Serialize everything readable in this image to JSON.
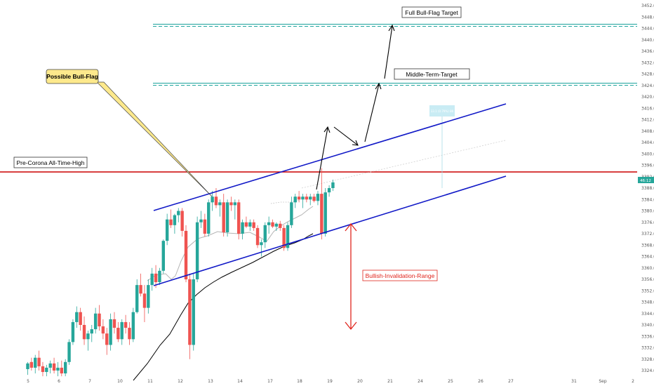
{
  "chart_data": {
    "type": "candlestick",
    "title": "",
    "y_axis": {
      "ticks": [
        "3452.0",
        "3448.0",
        "3444.0",
        "3440.0",
        "3436.0",
        "3432.0",
        "3428.0",
        "3424.0",
        "3420.0",
        "3416.0",
        "3412.0",
        "3408.0",
        "3404.0",
        "3400.0",
        "3396.0",
        "3392.0",
        "3388.0",
        "3384.0",
        "3380.0",
        "3376.0",
        "3372.0",
        "3368.0",
        "3364.0",
        "3360.0",
        "3356.0",
        "3352.0",
        "3348.0",
        "3344.0",
        "3340.0",
        "3336.0",
        "3332.0",
        "3328.0",
        "3324.0"
      ],
      "range": [
        3322,
        3454
      ],
      "position": "right"
    },
    "x_axis": {
      "ticks": [
        "5",
        "6",
        "7",
        "10",
        "11",
        "12",
        "13",
        "14",
        "17",
        "18",
        "19",
        "20",
        "21",
        "24",
        "25",
        "26",
        "27",
        "31",
        "Sep",
        "2"
      ]
    },
    "current_price_tag": "46:12",
    "colors": {
      "up": "#26a69a",
      "down": "#ef5350",
      "channel": "#1119c7",
      "resistance": "#cc0000",
      "target_line": "#1ba39c",
      "ma_slow": "#000000",
      "ma_fast": "#b4b4b4",
      "callout_fill": "#fde98c",
      "invalidation": "#e0251d"
    },
    "horizontal_levels": [
      {
        "label": "Pre-Corona All-Time-High",
        "price": 3393.5
      },
      {
        "label": "Middle-Term-Target",
        "price": 3424.5
      },
      {
        "label": "Full Bull-Flag Target",
        "price": 3445.5
      }
    ],
    "annotations": {
      "bull_flag": "Possible Bull-Flag",
      "invalidation": "Bullish-Invalidation-Range",
      "projection_box": "33.1 (0.79%) 86"
    },
    "candles": [
      {
        "x": 1.2,
        "o": 3324.5,
        "h": 3327.0,
        "l": 3322.5,
        "c": 3326.5
      },
      {
        "x": 1.5,
        "o": 3327.0,
        "h": 3328.5,
        "l": 3324.0,
        "c": 3325.0
      },
      {
        "x": 1.8,
        "o": 3325.0,
        "h": 3329.5,
        "l": 3323.0,
        "c": 3328.5
      },
      {
        "x": 2.1,
        "o": 3328.5,
        "h": 3331.0,
        "l": 3324.0,
        "c": 3325.5
      },
      {
        "x": 2.4,
        "o": 3325.5,
        "h": 3327.0,
        "l": 3322.0,
        "c": 3323.5
      },
      {
        "x": 2.7,
        "o": 3323.5,
        "h": 3326.0,
        "l": 3322.0,
        "c": 3325.0
      },
      {
        "x": 3.0,
        "o": 3325.0,
        "h": 3327.5,
        "l": 3323.0,
        "c": 3326.5
      },
      {
        "x": 3.3,
        "o": 3326.5,
        "h": 3328.5,
        "l": 3323.0,
        "c": 3324.0
      },
      {
        "x": 3.6,
        "o": 3324.0,
        "h": 3327.0,
        "l": 3322.0,
        "c": 3325.0
      },
      {
        "x": 3.9,
        "o": 3325.0,
        "h": 3327.5,
        "l": 3322.0,
        "c": 3323.0
      },
      {
        "x": 4.2,
        "o": 3323.0,
        "h": 3328.0,
        "l": 3322.0,
        "c": 3327.0
      },
      {
        "x": 4.5,
        "o": 3327.0,
        "h": 3335.0,
        "l": 3326.0,
        "c": 3334.0
      },
      {
        "x": 4.8,
        "o": 3334.0,
        "h": 3342.0,
        "l": 3333.0,
        "c": 3341.0
      },
      {
        "x": 5.1,
        "o": 3341.0,
        "h": 3346.5,
        "l": 3339.0,
        "c": 3344.5
      },
      {
        "x": 5.4,
        "o": 3344.5,
        "h": 3346.0,
        "l": 3338.0,
        "c": 3340.0
      },
      {
        "x": 5.7,
        "o": 3340.0,
        "h": 3343.0,
        "l": 3333.0,
        "c": 3335.0
      },
      {
        "x": 6.0,
        "o": 3335.0,
        "h": 3338.0,
        "l": 3331.0,
        "c": 3337.0
      },
      {
        "x": 6.3,
        "o": 3337.0,
        "h": 3340.0,
        "l": 3334.0,
        "c": 3338.5
      },
      {
        "x": 6.6,
        "o": 3338.5,
        "h": 3346.0,
        "l": 3337.0,
        "c": 3344.0
      },
      {
        "x": 6.9,
        "o": 3344.0,
        "h": 3347.0,
        "l": 3338.0,
        "c": 3339.5
      },
      {
        "x": 7.2,
        "o": 3339.5,
        "h": 3342.0,
        "l": 3335.0,
        "c": 3337.0
      },
      {
        "x": 7.5,
        "o": 3337.0,
        "h": 3339.0,
        "l": 3329.5,
        "c": 3333.0
      },
      {
        "x": 7.8,
        "o": 3333.0,
        "h": 3344.0,
        "l": 3331.0,
        "c": 3342.0
      },
      {
        "x": 8.1,
        "o": 3342.0,
        "h": 3344.5,
        "l": 3337.0,
        "c": 3339.0
      },
      {
        "x": 8.4,
        "o": 3339.0,
        "h": 3341.0,
        "l": 3334.0,
        "c": 3335.0
      },
      {
        "x": 8.7,
        "o": 3335.0,
        "h": 3342.0,
        "l": 3333.0,
        "c": 3341.0
      },
      {
        "x": 9.0,
        "o": 3341.0,
        "h": 3343.5,
        "l": 3337.0,
        "c": 3339.0
      },
      {
        "x": 9.3,
        "o": 3339.0,
        "h": 3341.0,
        "l": 3333.0,
        "c": 3335.0
      },
      {
        "x": 9.6,
        "o": 3335.0,
        "h": 3346.0,
        "l": 3334.0,
        "c": 3344.5
      },
      {
        "x": 9.9,
        "o": 3344.5,
        "h": 3356.0,
        "l": 3344.0,
        "c": 3354.0
      },
      {
        "x": 10.2,
        "o": 3354.0,
        "h": 3358.0,
        "l": 3350.0,
        "c": 3351.0
      },
      {
        "x": 10.5,
        "o": 3351.0,
        "h": 3354.0,
        "l": 3341.0,
        "c": 3346.0
      },
      {
        "x": 10.8,
        "o": 3346.0,
        "h": 3356.0,
        "l": 3344.0,
        "c": 3354.0
      },
      {
        "x": 11.1,
        "o": 3354.0,
        "h": 3360.0,
        "l": 3352.0,
        "c": 3358.0
      },
      {
        "x": 11.4,
        "o": 3358.0,
        "h": 3361.0,
        "l": 3353.0,
        "c": 3355.0
      },
      {
        "x": 11.7,
        "o": 3355.0,
        "h": 3360.0,
        "l": 3354.0,
        "c": 3359.0
      },
      {
        "x": 12.0,
        "o": 3359.0,
        "h": 3370.0,
        "l": 3358.0,
        "c": 3369.5
      },
      {
        "x": 12.3,
        "o": 3369.5,
        "h": 3379.0,
        "l": 3368.0,
        "c": 3377.0
      },
      {
        "x": 12.6,
        "o": 3377.0,
        "h": 3380.5,
        "l": 3374.0,
        "c": 3375.0
      },
      {
        "x": 12.9,
        "o": 3375.0,
        "h": 3379.0,
        "l": 3372.0,
        "c": 3378.5
      },
      {
        "x": 13.2,
        "o": 3378.5,
        "h": 3381.0,
        "l": 3376.0,
        "c": 3380.0
      },
      {
        "x": 13.5,
        "o": 3380.0,
        "h": 3381.0,
        "l": 3371.0,
        "c": 3373.0
      },
      {
        "x": 13.8,
        "o": 3373.0,
        "h": 3375.0,
        "l": 3355.0,
        "c": 3356.0
      },
      {
        "x": 14.1,
        "o": 3356.0,
        "h": 3358.0,
        "l": 3328.0,
        "c": 3333.0
      },
      {
        "x": 14.4,
        "o": 3333.0,
        "h": 3358.0,
        "l": 3331.0,
        "c": 3356.0
      },
      {
        "x": 14.7,
        "o": 3356.0,
        "h": 3378.0,
        "l": 3355.0,
        "c": 3376.0
      },
      {
        "x": 15.0,
        "o": 3376.0,
        "h": 3380.0,
        "l": 3374.0,
        "c": 3377.0
      },
      {
        "x": 15.3,
        "o": 3377.0,
        "h": 3379.0,
        "l": 3371.0,
        "c": 3372.0
      },
      {
        "x": 15.6,
        "o": 3372.0,
        "h": 3384.0,
        "l": 3371.0,
        "c": 3383.0
      },
      {
        "x": 15.9,
        "o": 3383.0,
        "h": 3387.0,
        "l": 3380.0,
        "c": 3385.0
      },
      {
        "x": 16.2,
        "o": 3385.0,
        "h": 3388.0,
        "l": 3381.0,
        "c": 3382.0
      },
      {
        "x": 16.5,
        "o": 3382.0,
        "h": 3384.0,
        "l": 3378.0,
        "c": 3383.0
      },
      {
        "x": 16.8,
        "o": 3383.0,
        "h": 3386.0,
        "l": 3371.0,
        "c": 3372.5
      },
      {
        "x": 17.1,
        "o": 3372.5,
        "h": 3384.0,
        "l": 3371.0,
        "c": 3383.0
      },
      {
        "x": 17.4,
        "o": 3383.0,
        "h": 3385.0,
        "l": 3380.0,
        "c": 3382.0
      },
      {
        "x": 17.7,
        "o": 3382.0,
        "h": 3384.0,
        "l": 3377.0,
        "c": 3383.0
      },
      {
        "x": 18.0,
        "o": 3383.0,
        "h": 3384.0,
        "l": 3370.0,
        "c": 3372.0
      },
      {
        "x": 18.3,
        "o": 3372.0,
        "h": 3377.0,
        "l": 3370.0,
        "c": 3376.0
      },
      {
        "x": 18.6,
        "o": 3376.0,
        "h": 3378.0,
        "l": 3374.0,
        "c": 3374.5
      },
      {
        "x": 18.9,
        "o": 3374.5,
        "h": 3377.0,
        "l": 3373.0,
        "c": 3376.0
      },
      {
        "x": 19.2,
        "o": 3376.0,
        "h": 3377.0,
        "l": 3373.0,
        "c": 3374.0
      },
      {
        "x": 19.5,
        "o": 3374.0,
        "h": 3375.0,
        "l": 3367.0,
        "c": 3368.0
      },
      {
        "x": 19.8,
        "o": 3368.0,
        "h": 3370.0,
        "l": 3364.0,
        "c": 3369.0
      },
      {
        "x": 20.1,
        "o": 3369.0,
        "h": 3376.0,
        "l": 3367.0,
        "c": 3375.0
      },
      {
        "x": 20.4,
        "o": 3375.0,
        "h": 3378.0,
        "l": 3372.0,
        "c": 3376.0
      },
      {
        "x": 20.7,
        "o": 3376.0,
        "h": 3377.0,
        "l": 3374.0,
        "c": 3374.5
      },
      {
        "x": 21.0,
        "o": 3374.5,
        "h": 3376.0,
        "l": 3373.0,
        "c": 3375.5
      },
      {
        "x": 21.3,
        "o": 3375.5,
        "h": 3376.5,
        "l": 3373.0,
        "c": 3374.0
      },
      {
        "x": 21.6,
        "o": 3374.0,
        "h": 3375.0,
        "l": 3366.0,
        "c": 3367.0
      },
      {
        "x": 21.9,
        "o": 3367.0,
        "h": 3376.0,
        "l": 3366.0,
        "c": 3375.0
      },
      {
        "x": 22.2,
        "o": 3375.0,
        "h": 3385.0,
        "l": 3374.0,
        "c": 3383.0
      },
      {
        "x": 22.5,
        "o": 3383.0,
        "h": 3386.0,
        "l": 3381.0,
        "c": 3385.0
      },
      {
        "x": 22.8,
        "o": 3385.0,
        "h": 3387.0,
        "l": 3383.0,
        "c": 3384.0
      },
      {
        "x": 23.1,
        "o": 3384.0,
        "h": 3386.0,
        "l": 3381.0,
        "c": 3385.0
      },
      {
        "x": 23.4,
        "o": 3385.0,
        "h": 3386.0,
        "l": 3383.0,
        "c": 3384.0
      },
      {
        "x": 23.7,
        "o": 3384.0,
        "h": 3386.0,
        "l": 3382.0,
        "c": 3385.0
      },
      {
        "x": 24.0,
        "o": 3385.0,
        "h": 3386.0,
        "l": 3383.0,
        "c": 3383.5
      },
      {
        "x": 24.3,
        "o": 3383.5,
        "h": 3387.0,
        "l": 3382.0,
        "c": 3386.0
      },
      {
        "x": 24.6,
        "o": 3386.0,
        "h": 3395.0,
        "l": 3370.0,
        "c": 3372.0
      },
      {
        "x": 24.9,
        "o": 3372.0,
        "h": 3388.0,
        "l": 3371.0,
        "c": 3386.5
      },
      {
        "x": 25.2,
        "o": 3386.5,
        "h": 3389.0,
        "l": 3385.0,
        "c": 3388.0
      },
      {
        "x": 25.5,
        "o": 3388.0,
        "h": 3391.0,
        "l": 3387.0,
        "c": 3390.0
      }
    ]
  }
}
